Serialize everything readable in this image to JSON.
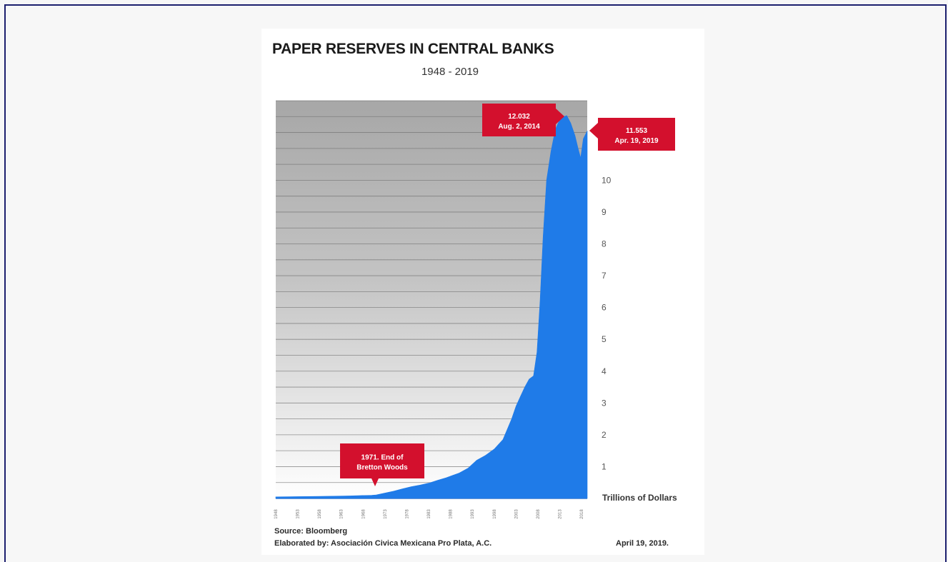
{
  "chart_data": {
    "type": "area",
    "title": "PAPER RESERVES IN CENTRAL BANKS",
    "subtitle": "1948 - 2019",
    "ylabel": "Trillions of Dollars",
    "ylim": [
      0,
      12.5
    ],
    "yticks": [
      1,
      2,
      3,
      4,
      5,
      6,
      7,
      8,
      9,
      10
    ],
    "xlim": [
      1948,
      2019.3
    ],
    "xticks": [
      "1948",
      "1953",
      "1958",
      "1963",
      "1968",
      "1973",
      "1978",
      "1983",
      "1988",
      "1993",
      "1998",
      "2003",
      "2008",
      "2013",
      "2018"
    ],
    "grid": true,
    "color": "#1f7be8",
    "series": [
      {
        "x": [
          1948,
          1955,
          1960,
          1965,
          1970,
          1971,
          1973,
          1975,
          1977,
          1979,
          1981,
          1983,
          1985,
          1987,
          1990,
          1992,
          1994,
          1996,
          1998,
          2000,
          2002,
          2003,
          2004,
          2005,
          2006,
          2007,
          2007.8,
          2008.5,
          2009.2,
          2010,
          2011,
          2012,
          2013,
          2014,
          2014.6,
          2015.5,
          2016.5,
          2017.2,
          2017.8,
          2018.4,
          2019.3
        ],
        "y": [
          0.05,
          0.06,
          0.07,
          0.08,
          0.1,
          0.11,
          0.17,
          0.23,
          0.3,
          0.37,
          0.42,
          0.48,
          0.57,
          0.65,
          0.8,
          0.95,
          1.2,
          1.35,
          1.55,
          1.85,
          2.5,
          2.9,
          3.2,
          3.5,
          3.75,
          3.85,
          4.6,
          6.2,
          8.2,
          10.0,
          10.9,
          11.6,
          11.9,
          12.0,
          12.03,
          11.8,
          11.4,
          11.0,
          10.7,
          11.3,
          11.55
        ]
      }
    ],
    "annotations": [
      {
        "label_line1": "12.032",
        "label_line2": "Aug. 2, 2014",
        "x": 2014.6,
        "y": 12.032
      },
      {
        "label_line1": "11.553",
        "label_line2": "Apr. 19, 2019",
        "x": 2019.3,
        "y": 11.553
      },
      {
        "label_line1": "1971. End of",
        "label_line2": "Bretton Woods",
        "x": 1971,
        "y": 0.11
      }
    ]
  },
  "footer": {
    "source": "Source: Bloomberg",
    "elaborated": "Elaborated by: Asociación Civica Mexicana Pro Plata, A.C.",
    "date": "April 19, 2019."
  }
}
